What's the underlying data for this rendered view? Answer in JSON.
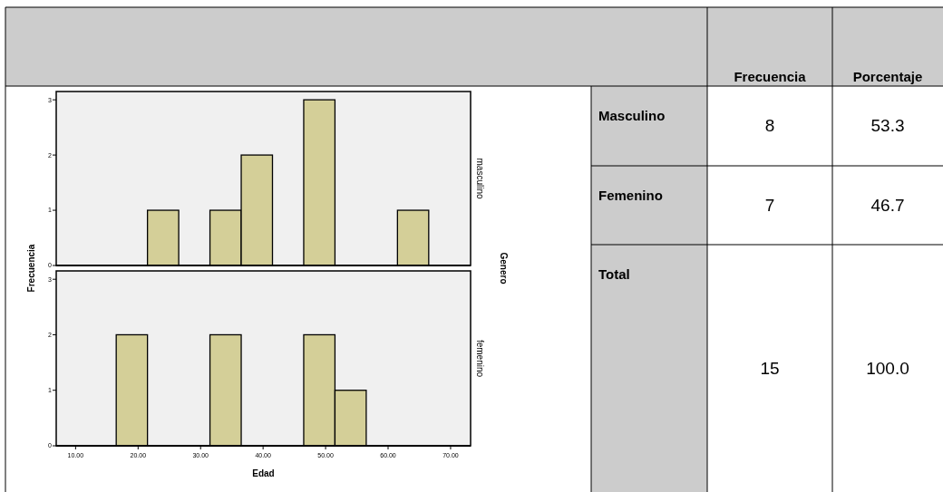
{
  "chart_data": [
    {
      "type": "histogram",
      "ylabel": "Frecuencia",
      "annotations": [
        "masculino",
        "Genero"
      ],
      "bins": [
        21.5,
        26.5,
        31.5,
        36.5,
        41.5,
        46.5,
        51.5,
        56.5,
        61.5,
        66.5
      ],
      "values": [
        1,
        0,
        1,
        2,
        0,
        3,
        0,
        0,
        1
      ],
      "color": "#d4cf98",
      "xlim": [
        6.9,
        73.2
      ],
      "ylim": [
        0,
        3.15
      ],
      "yticks": [
        0,
        1,
        2,
        3
      ],
      "tick_labels": "y"
    },
    {
      "type": "histogram",
      "annotations": [
        "femenino"
      ],
      "xlabel": "Edad",
      "bins": [
        16.5,
        21.5,
        26.5,
        31.5,
        36.5,
        41.5,
        46.5,
        51.5,
        56.5
      ],
      "values": [
        2,
        0,
        0,
        2,
        0,
        0,
        2,
        1
      ],
      "color": "#d4cf98",
      "xlim": [
        6.9,
        73.2
      ],
      "xticks": [
        {
          "value": 10,
          "label": "10.00"
        },
        {
          "value": 20,
          "label": "20.00"
        },
        {
          "value": 30,
          "label": "30.00"
        },
        {
          "value": 40,
          "label": "40.00"
        },
        {
          "value": 50,
          "label": "50.00"
        },
        {
          "value": 60,
          "label": "60.00"
        },
        {
          "value": 70,
          "label": "70.00"
        }
      ],
      "ylim": [
        0,
        3.15
      ],
      "yticks": [
        0,
        1,
        2,
        3
      ]
    },
    {
      "type": "other",
      "data_labels": true,
      "categories": [
        "Masculino",
        "Femenino",
        "Total"
      ],
      "series": [
        {
          "name": "Frecuencia",
          "values": [
            8,
            7,
            15
          ]
        },
        {
          "name": "Porcentaje",
          "values": [
            53.3,
            46.7,
            100.0
          ],
          "value_labels": [
            "53.3",
            "46.7",
            "100.0"
          ]
        }
      ]
    }
  ]
}
